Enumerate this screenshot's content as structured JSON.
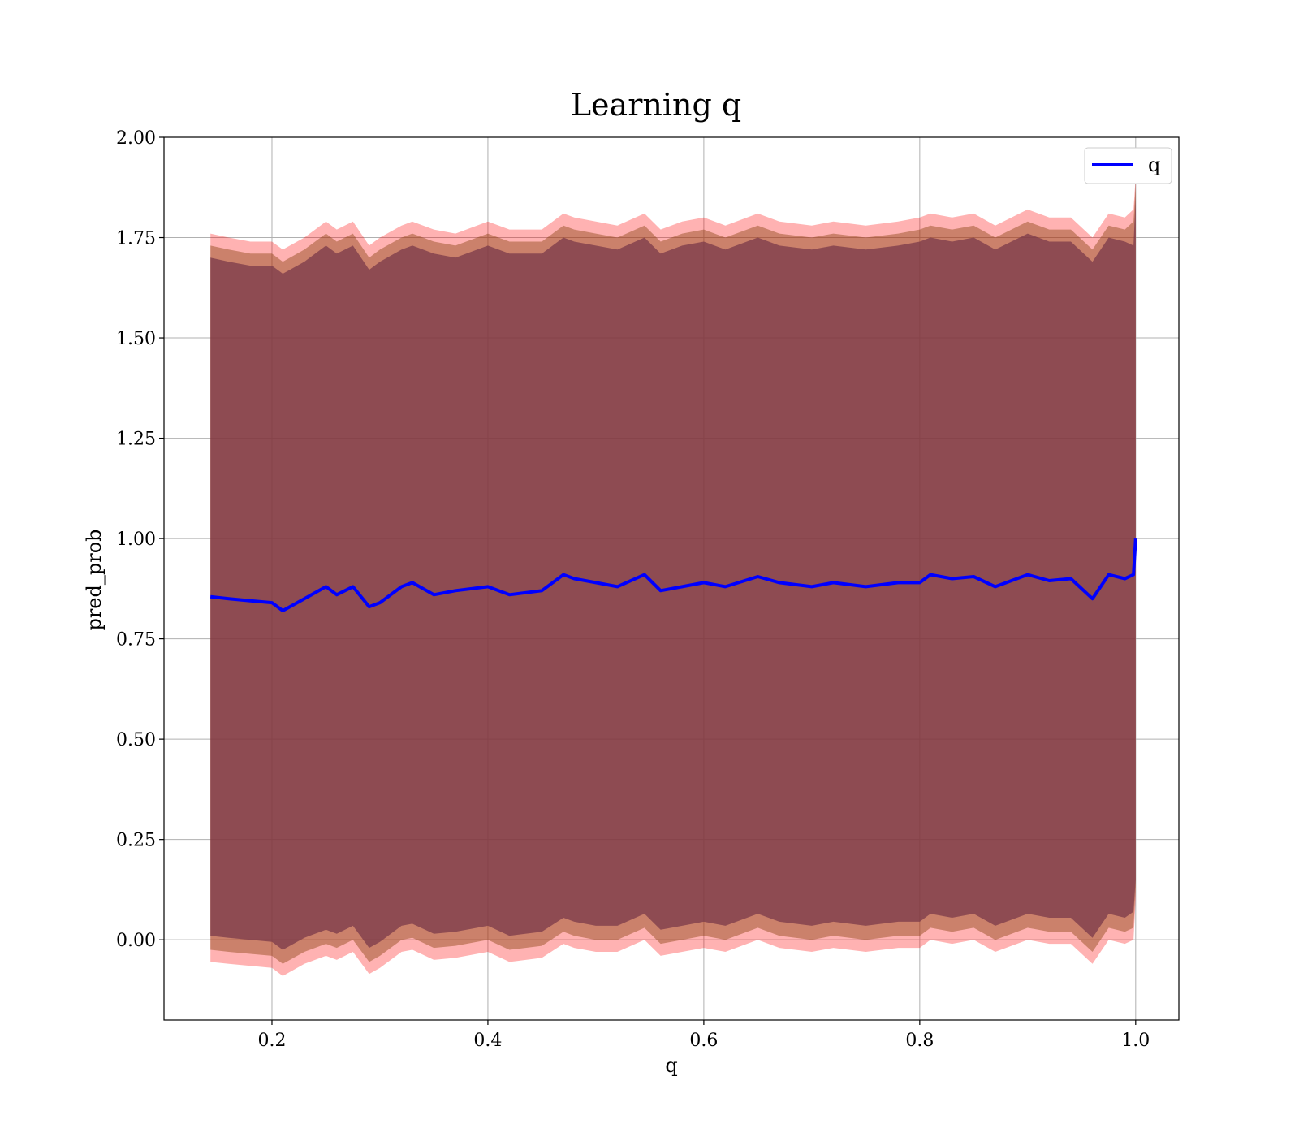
{
  "chart_data": {
    "type": "line",
    "title": "Learning q",
    "xlabel": "q",
    "ylabel": "pred_prob",
    "xlim": [
      0.1,
      1.04
    ],
    "ylim": [
      -0.2,
      2.0
    ],
    "xticks": [
      "0.2",
      "0.4",
      "0.6",
      "0.8",
      "1.0"
    ],
    "yticks": [
      "0.00",
      "0.25",
      "0.50",
      "0.75",
      "1.00",
      "1.25",
      "1.50",
      "1.75",
      "2.00"
    ],
    "grid": true,
    "legend": {
      "position": "top-right",
      "entries": [
        "q"
      ]
    },
    "colors": {
      "line": "#0000ff",
      "band_outer": "#ff0000",
      "band_inner": "#8b4513",
      "band_core": "#7a3a4a"
    },
    "series": [
      {
        "name": "q",
        "x": [
          0.143,
          0.16,
          0.18,
          0.2,
          0.21,
          0.23,
          0.25,
          0.26,
          0.275,
          0.29,
          0.3,
          0.32,
          0.33,
          0.35,
          0.37,
          0.4,
          0.42,
          0.45,
          0.47,
          0.48,
          0.5,
          0.52,
          0.545,
          0.56,
          0.58,
          0.6,
          0.62,
          0.65,
          0.67,
          0.7,
          0.72,
          0.75,
          0.78,
          0.8,
          0.81,
          0.83,
          0.85,
          0.87,
          0.9,
          0.92,
          0.94,
          0.96,
          0.975,
          0.99,
          0.998,
          1.0
        ],
        "values": [
          0.855,
          0.85,
          0.845,
          0.84,
          0.82,
          0.85,
          0.88,
          0.86,
          0.88,
          0.83,
          0.84,
          0.88,
          0.89,
          0.86,
          0.87,
          0.88,
          0.86,
          0.87,
          0.91,
          0.9,
          0.89,
          0.88,
          0.91,
          0.87,
          0.88,
          0.89,
          0.88,
          0.905,
          0.89,
          0.88,
          0.89,
          0.88,
          0.89,
          0.89,
          0.91,
          0.9,
          0.905,
          0.88,
          0.91,
          0.895,
          0.9,
          0.85,
          0.91,
          0.9,
          0.91,
          1.0
        ]
      }
    ],
    "bands": [
      {
        "name": "outer",
        "color": "#ff0000",
        "upper": [
          1.76,
          1.75,
          1.74,
          1.74,
          1.72,
          1.75,
          1.79,
          1.77,
          1.79,
          1.73,
          1.75,
          1.78,
          1.79,
          1.77,
          1.76,
          1.79,
          1.77,
          1.77,
          1.81,
          1.8,
          1.79,
          1.78,
          1.81,
          1.77,
          1.79,
          1.8,
          1.78,
          1.81,
          1.79,
          1.78,
          1.79,
          1.78,
          1.79,
          1.8,
          1.81,
          1.8,
          1.81,
          1.78,
          1.82,
          1.8,
          1.8,
          1.75,
          1.81,
          1.8,
          1.82,
          1.9
        ],
        "lower": [
          -0.055,
          -0.06,
          -0.065,
          -0.07,
          -0.09,
          -0.06,
          -0.04,
          -0.05,
          -0.03,
          -0.085,
          -0.07,
          -0.03,
          -0.025,
          -0.05,
          -0.045,
          -0.03,
          -0.055,
          -0.045,
          -0.01,
          -0.02,
          -0.03,
          -0.03,
          0.0,
          -0.04,
          -0.03,
          -0.02,
          -0.03,
          0.0,
          -0.02,
          -0.03,
          -0.02,
          -0.03,
          -0.02,
          -0.02,
          0.0,
          -0.01,
          0.0,
          -0.03,
          0.0,
          -0.01,
          -0.01,
          -0.06,
          0.0,
          -0.01,
          0.0,
          0.1
        ]
      },
      {
        "name": "inner",
        "color": "#8b4513",
        "upper": [
          1.73,
          1.72,
          1.71,
          1.71,
          1.69,
          1.72,
          1.76,
          1.74,
          1.76,
          1.7,
          1.72,
          1.75,
          1.76,
          1.74,
          1.73,
          1.76,
          1.74,
          1.74,
          1.78,
          1.77,
          1.76,
          1.75,
          1.78,
          1.74,
          1.76,
          1.77,
          1.75,
          1.78,
          1.76,
          1.75,
          1.76,
          1.75,
          1.76,
          1.77,
          1.78,
          1.77,
          1.78,
          1.75,
          1.79,
          1.77,
          1.77,
          1.72,
          1.78,
          1.77,
          1.79,
          1.88
        ],
        "lower": [
          -0.025,
          -0.03,
          -0.035,
          -0.04,
          -0.06,
          -0.03,
          -0.01,
          -0.02,
          0.0,
          -0.055,
          -0.04,
          0.0,
          0.005,
          -0.02,
          -0.015,
          0.0,
          -0.025,
          -0.015,
          0.02,
          0.01,
          0.0,
          0.0,
          0.03,
          -0.01,
          0.0,
          0.01,
          0.0,
          0.03,
          0.01,
          0.0,
          0.01,
          0.0,
          0.01,
          0.01,
          0.03,
          0.02,
          0.03,
          0.0,
          0.03,
          0.02,
          0.02,
          -0.03,
          0.03,
          0.02,
          0.03,
          0.13
        ]
      },
      {
        "name": "core",
        "color": "#7a3a4a",
        "upper": [
          1.7,
          1.69,
          1.68,
          1.68,
          1.66,
          1.69,
          1.73,
          1.71,
          1.73,
          1.67,
          1.69,
          1.72,
          1.73,
          1.71,
          1.7,
          1.73,
          1.71,
          1.71,
          1.75,
          1.74,
          1.73,
          1.72,
          1.75,
          1.71,
          1.73,
          1.74,
          1.72,
          1.75,
          1.73,
          1.72,
          1.73,
          1.72,
          1.73,
          1.74,
          1.75,
          1.74,
          1.75,
          1.72,
          1.76,
          1.74,
          1.74,
          1.69,
          1.75,
          1.74,
          1.73,
          1.85
        ],
        "lower": [
          0.01,
          0.005,
          0.0,
          -0.005,
          -0.025,
          0.005,
          0.025,
          0.015,
          0.035,
          -0.02,
          -0.005,
          0.035,
          0.04,
          0.015,
          0.02,
          0.035,
          0.01,
          0.02,
          0.055,
          0.045,
          0.035,
          0.035,
          0.065,
          0.025,
          0.035,
          0.045,
          0.035,
          0.065,
          0.045,
          0.035,
          0.045,
          0.035,
          0.045,
          0.045,
          0.065,
          0.055,
          0.065,
          0.035,
          0.065,
          0.055,
          0.055,
          0.005,
          0.065,
          0.055,
          0.07,
          0.15
        ]
      }
    ]
  }
}
